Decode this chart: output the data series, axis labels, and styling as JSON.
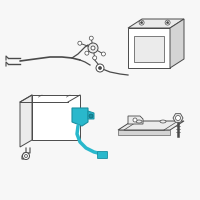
{
  "bg_color": "#f7f7f7",
  "highlight_color": "#29b8cc",
  "line_color": "#4a4a4a",
  "fill_white": "#ffffff",
  "fill_light": "#ebebeb",
  "fill_mid": "#d4d4d4"
}
